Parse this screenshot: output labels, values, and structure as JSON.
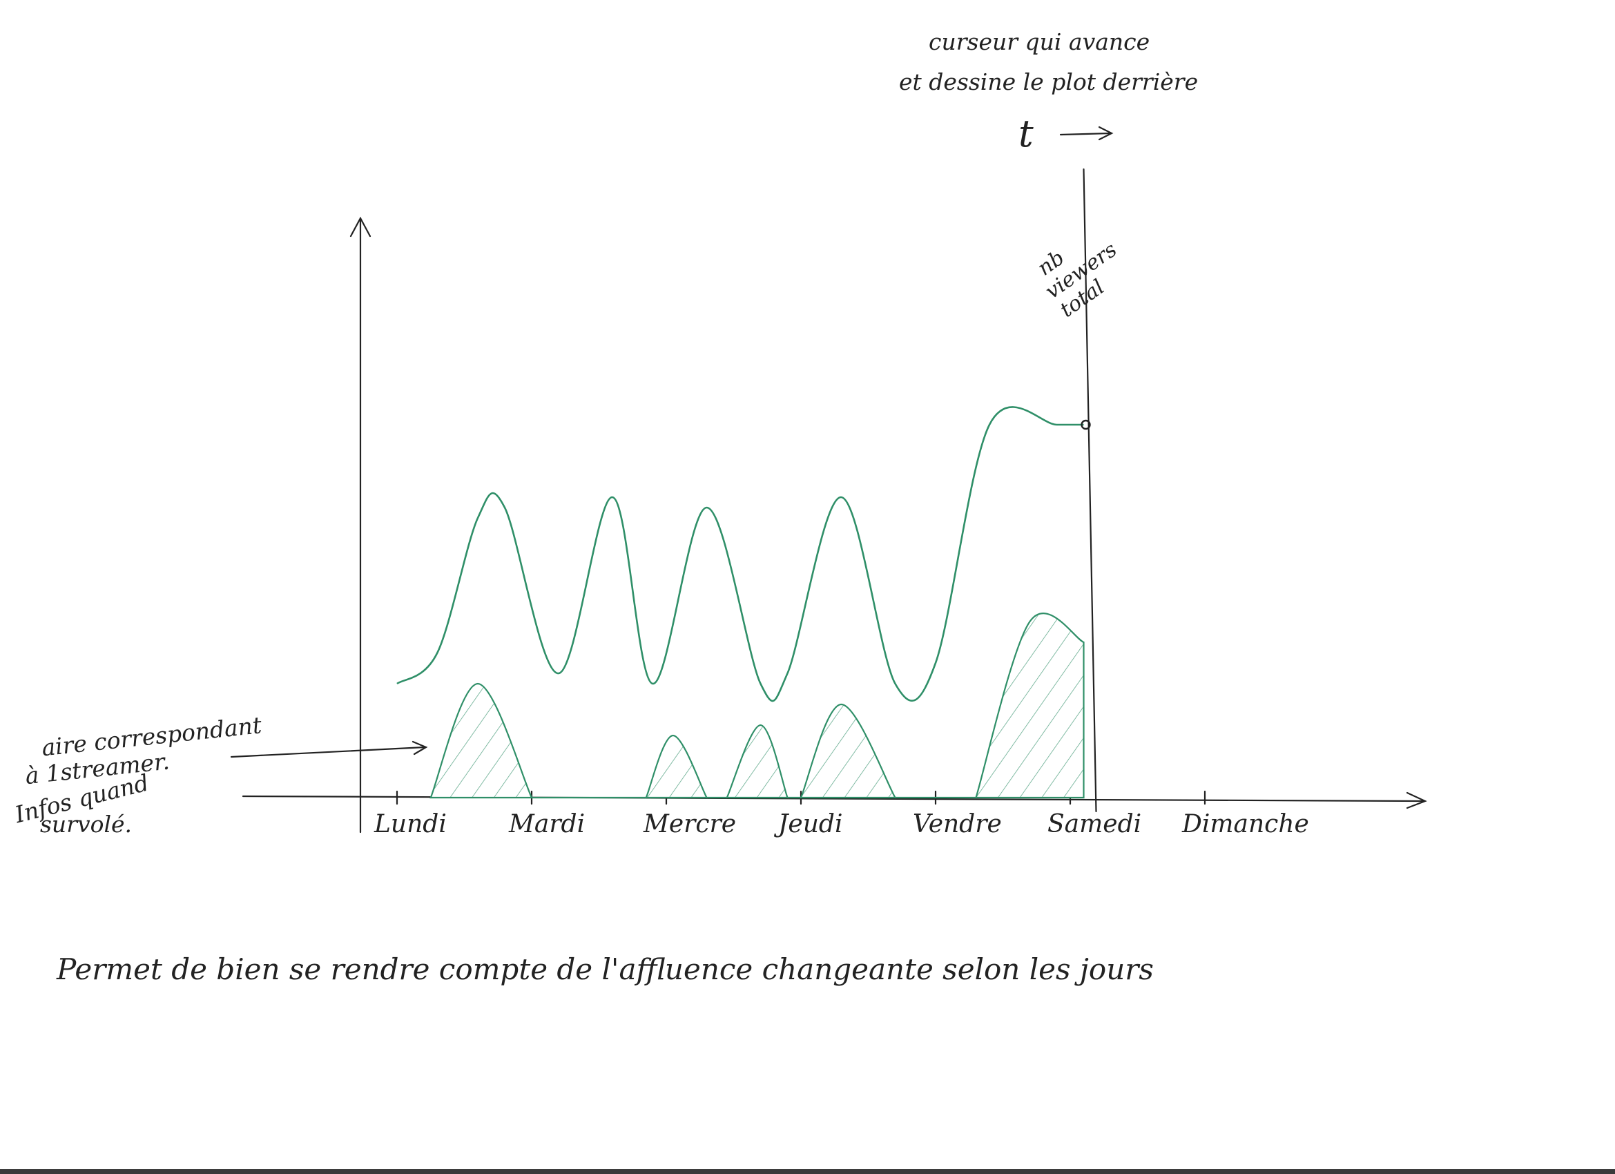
{
  "chart_data": {
    "type": "line",
    "title": "",
    "xlabel": "",
    "ylabel": "",
    "categories": [
      "Lundi",
      "Mardi",
      "Mercre",
      "Jeudi",
      "Vendre",
      "Samedi",
      "Dimanche"
    ],
    "series": [
      {
        "name": "nb viewers total",
        "style": "line",
        "x": [
          0.0,
          0.3,
          0.6,
          0.8,
          1.2,
          1.6,
          1.9,
          2.3,
          2.7,
          2.9,
          3.3,
          3.7,
          4.0,
          4.4,
          4.9,
          5.1
        ],
        "y": [
          11,
          14,
          27,
          28,
          12,
          29,
          11,
          28,
          11,
          12,
          29,
          11,
          13,
          36,
          36,
          36
        ]
      },
      {
        "name": "aire correspondant à 1 streamer",
        "style": "area",
        "x": [
          0.25,
          0.6,
          1.0,
          1.85,
          2.05,
          2.3,
          2.45,
          2.7,
          2.9,
          3.0,
          3.3,
          3.7,
          4.3,
          4.7,
          5.1
        ],
        "y": [
          0,
          11,
          0,
          0,
          6,
          0,
          0,
          7,
          0,
          0,
          9,
          0,
          0,
          17,
          15
        ]
      }
    ],
    "ylim": [
      0,
      42
    ],
    "xlim": [
      -0.1,
      7.2
    ],
    "cursor_x": 5.1,
    "line_color": "#2f8f68",
    "annotations": {
      "cursor": [
        "curseur qui avance",
        "et dessine le plot derrière"
      ],
      "time_symbol": "t",
      "marker": [
        "nb",
        "viewers",
        "total"
      ],
      "area": [
        "aire correspondant",
        "à 1streamer.",
        "Infos quand",
        "survolé."
      ]
    }
  },
  "caption": "Permet de bien se rendre compte de l'affluence changeante selon les jours"
}
